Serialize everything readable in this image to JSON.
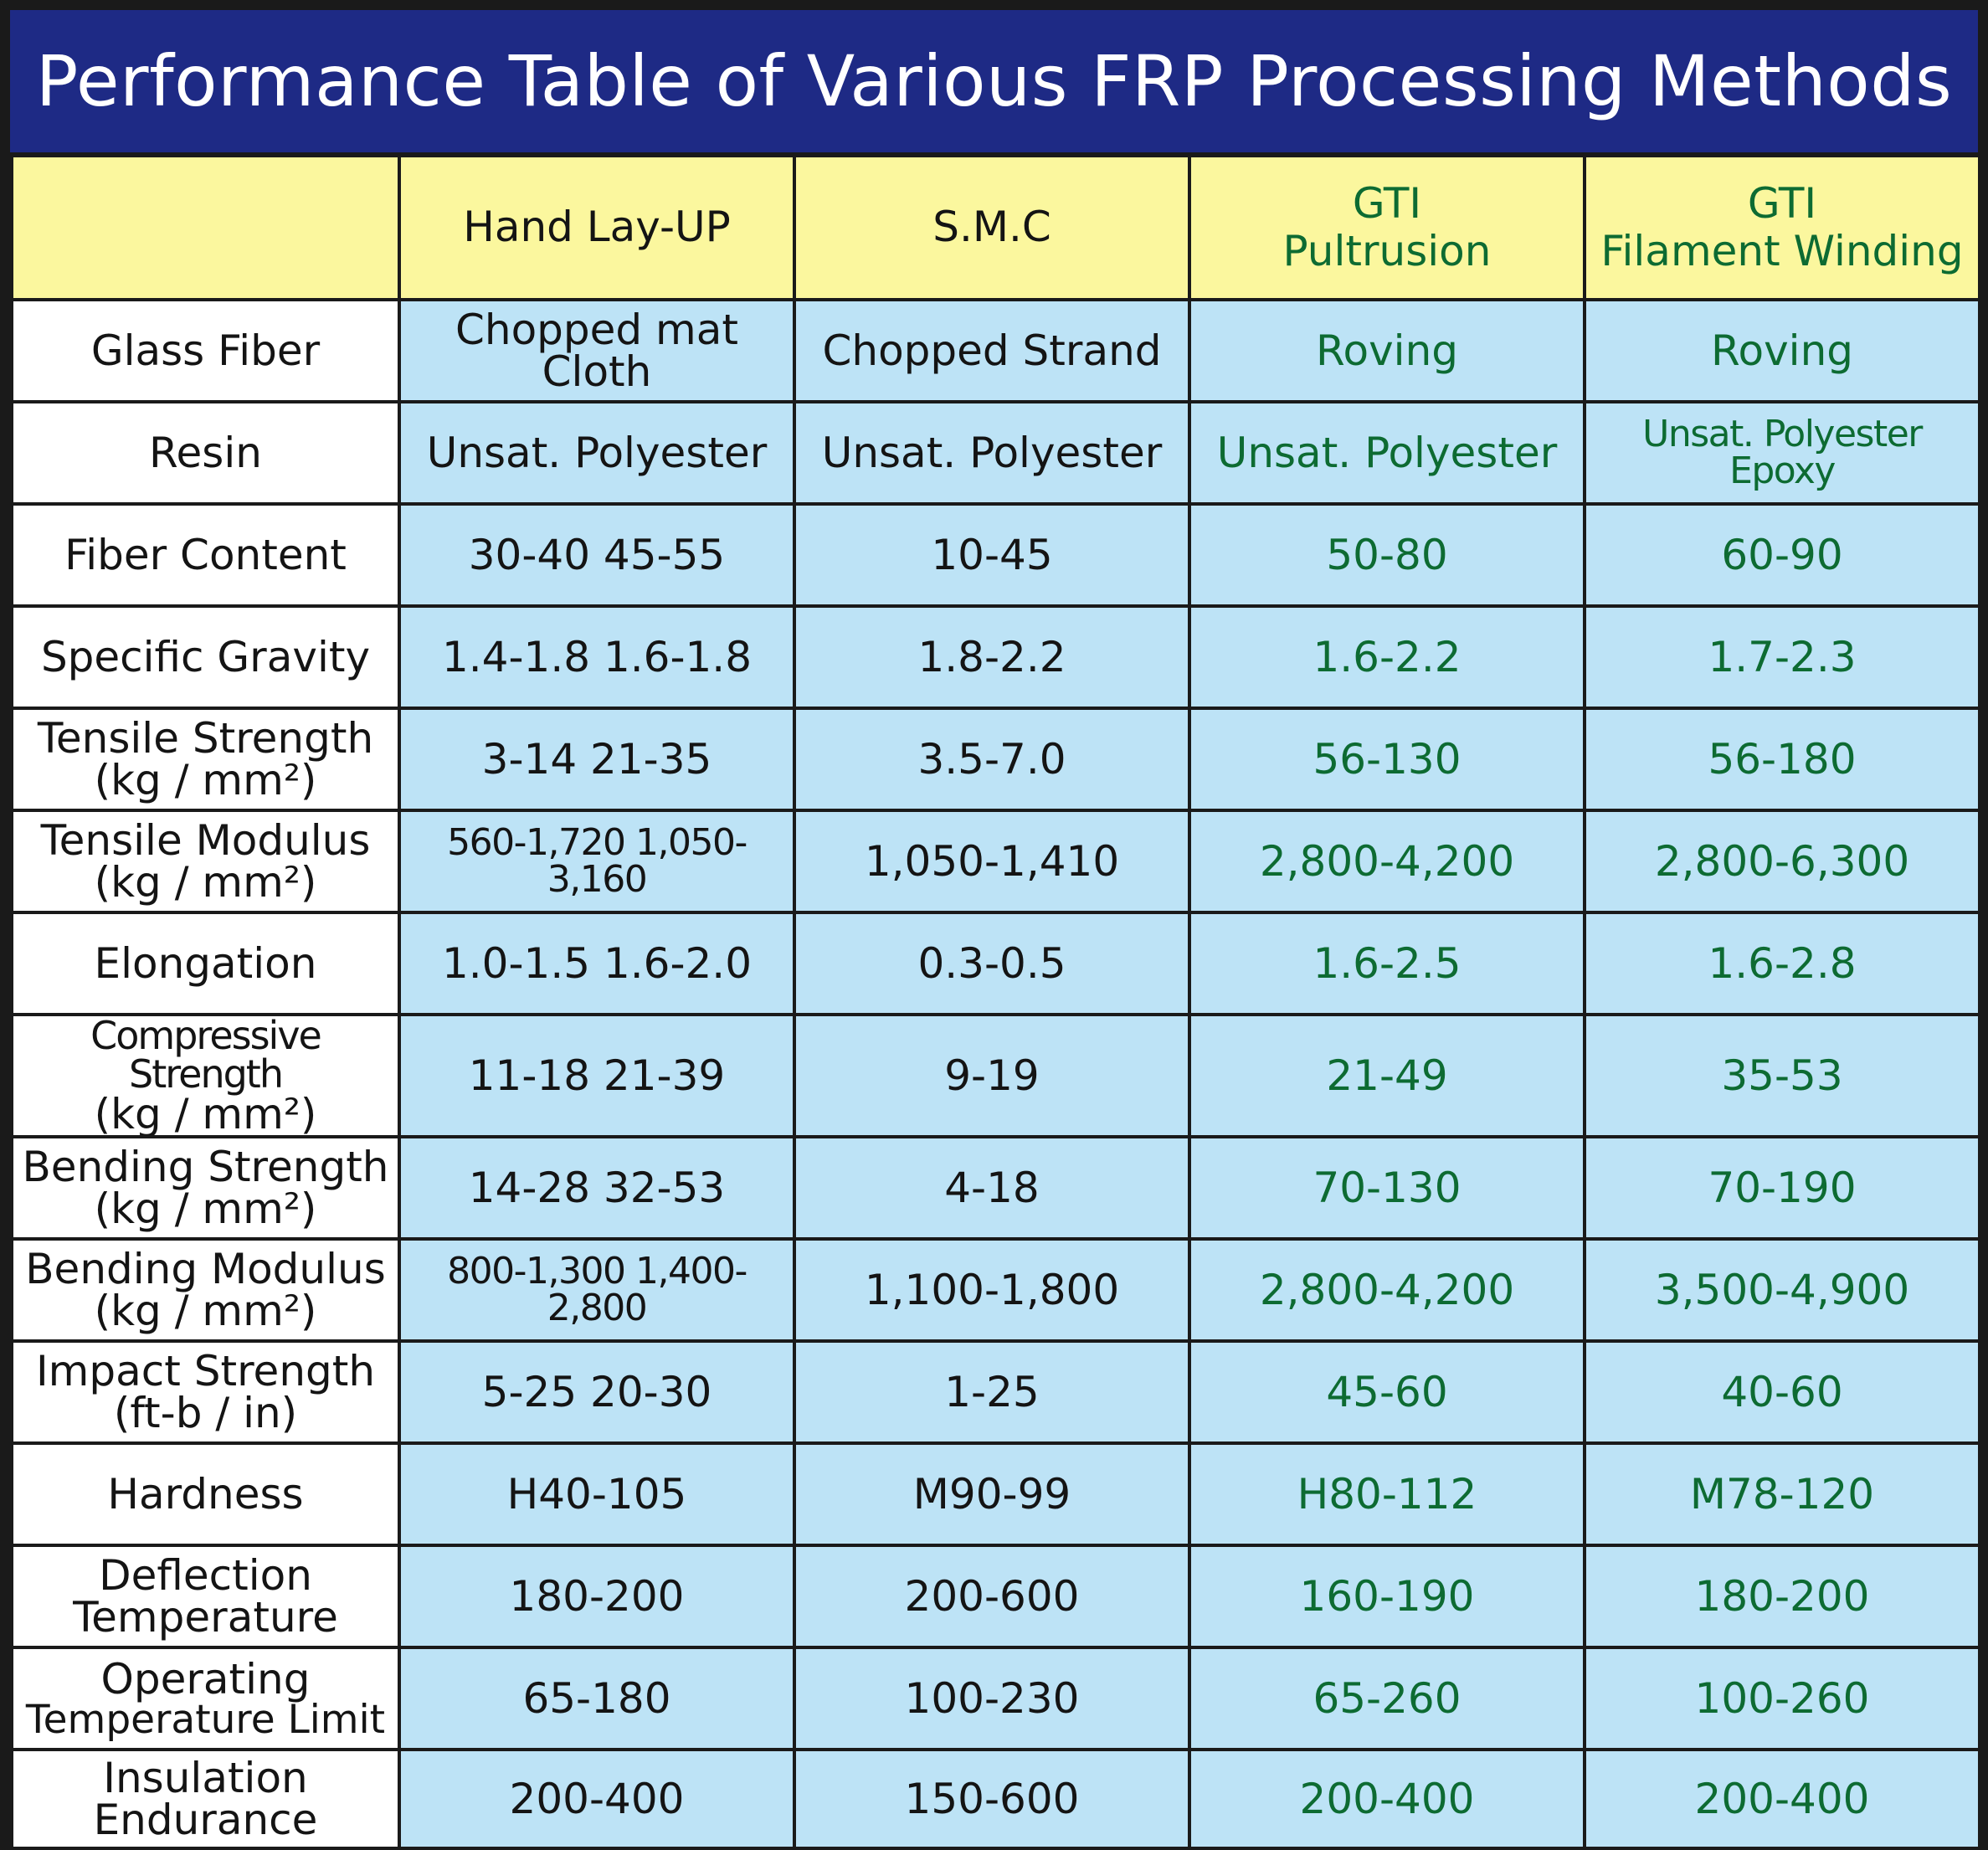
{
  "title": "Performance Table of Various FRP Processing Methods",
  "columns": [
    {
      "key": "hand",
      "label": "Hand Lay-UP",
      "label2": "",
      "gti": false
    },
    {
      "key": "smc",
      "label": "S.M.C",
      "label2": "",
      "gti": false
    },
    {
      "key": "pultrusion",
      "label": "GTI",
      "label2": "Pultrusion",
      "gti": true
    },
    {
      "key": "winding",
      "label": "GTI",
      "label2": "Filament Winding",
      "gti": true
    }
  ],
  "rows": [
    {
      "label": "Glass Fiber",
      "label2": "",
      "values": [
        "Chopped mat Cloth",
        "Chopped Strand",
        "Roving",
        "Roving"
      ]
    },
    {
      "label": "Resin",
      "label2": "",
      "values": [
        "Unsat. Polyester",
        "Unsat. Polyester",
        "Unsat. Polyester",
        "Unsat. Polyester Epoxy"
      ]
    },
    {
      "label": "Fiber Content",
      "label2": "",
      "values": [
        "30-40  45-55",
        "10-45",
        "50-80",
        "60-90"
      ]
    },
    {
      "label": "Specific Gravity",
      "label2": "",
      "values": [
        "1.4-1.8  1.6-1.8",
        "1.8-2.2",
        "1.6-2.2",
        "1.7-2.3"
      ]
    },
    {
      "label": "Tensile Strength",
      "label2": "(kg / mm²)",
      "values": [
        "3-14  21-35",
        "3.5-7.0",
        "56-130",
        "56-180"
      ]
    },
    {
      "label": "Tensile Modulus",
      "label2": "(kg / mm²)",
      "values": [
        "560-1,720  1,050-3,160",
        "1,050-1,410",
        "2,800-4,200",
        "2,800-6,300"
      ]
    },
    {
      "label": "Elongation",
      "label2": "",
      "values": [
        "1.0-1.5  1.6-2.0",
        "0.3-0.5",
        "1.6-2.5",
        "1.6-2.8"
      ]
    },
    {
      "label": "Compressive Strength",
      "label2": "(kg / mm²)",
      "values": [
        "11-18 21-39",
        "9-19",
        "21-49",
        "35-53"
      ]
    },
    {
      "label": "Bending Strength",
      "label2": "(kg / mm²)",
      "values": [
        "14-28  32-53",
        "4-18",
        "70-130",
        "70-190"
      ]
    },
    {
      "label": "Bending Modulus",
      "label2": "(kg / mm²)",
      "values": [
        "800-1,300  1,400-2,800",
        "1,100-1,800",
        "2,800-4,200",
        "3,500-4,900"
      ]
    },
    {
      "label": "Impact Strength",
      "label2": "(ft-b / in)",
      "values": [
        "5-25  20-30",
        "1-25",
        "45-60",
        "40-60"
      ]
    },
    {
      "label": "Hardness",
      "label2": "",
      "values": [
        "H40-105",
        "M90-99",
        "H80-112",
        "M78-120"
      ]
    },
    {
      "label": "Deflection",
      "label2": "Temperature",
      "values": [
        "180-200",
        "200-600",
        "160-190",
        "180-200"
      ]
    },
    {
      "label": "Operating",
      "label2": "Temperature Limit",
      "values": [
        "65-180",
        "100-230",
        "65-260",
        "100-260"
      ]
    },
    {
      "label": "Insulation",
      "label2": "Endurance",
      "values": [
        "200-400",
        "150-600",
        "200-400",
        "200-400"
      ]
    }
  ],
  "colors": {
    "title_bg": "#1e2a85",
    "header_bg": "#fbf79e",
    "cell_bg": "#bde3f6",
    "gti_text": "#0d6b32",
    "border": "#1a1a1a"
  }
}
